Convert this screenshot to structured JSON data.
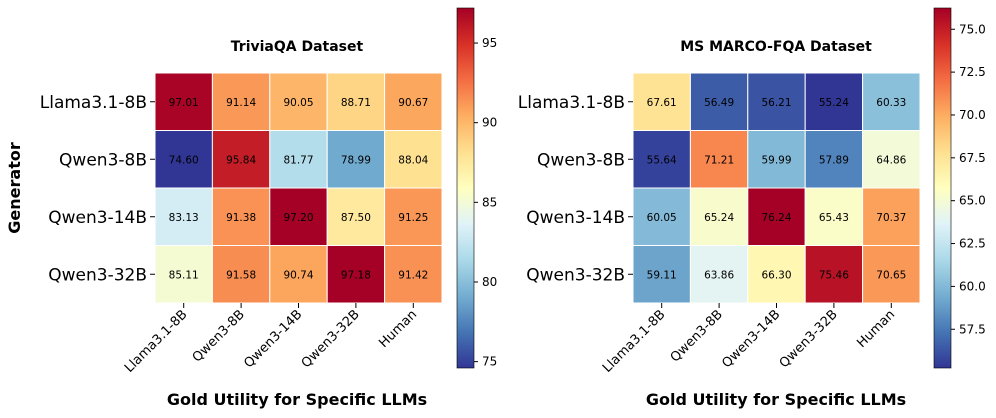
{
  "figure": {
    "ylabel": "Generator"
  },
  "chart_data": [
    {
      "type": "heatmap",
      "title": "TriviaQA Dataset",
      "xlabel": "Gold Utility for Specific LLMs",
      "ylabel": "Generator",
      "rows": [
        "Llama3.1-8B",
        "Qwen3-8B",
        "Qwen3-14B",
        "Qwen3-32B"
      ],
      "columns": [
        "Llama3.1-8B",
        "Qwen3-8B",
        "Qwen3-14B",
        "Qwen3-32B",
        "Human"
      ],
      "values": [
        [
          97.01,
          91.14,
          90.05,
          88.71,
          90.67
        ],
        [
          74.6,
          95.84,
          81.77,
          78.99,
          88.04
        ],
        [
          83.13,
          91.38,
          97.2,
          87.5,
          91.25
        ],
        [
          85.11,
          91.58,
          90.74,
          97.18,
          91.42
        ]
      ],
      "labels": [
        [
          "97.01",
          "91.14",
          "90.05",
          "88.71",
          "90.67"
        ],
        [
          "74.60",
          "95.84",
          "81.77",
          "78.99",
          "88.04"
        ],
        [
          "83.13",
          "91.38",
          "97.20",
          "87.50",
          "91.25"
        ],
        [
          "85.11",
          "91.58",
          "90.74",
          "97.18",
          "91.42"
        ]
      ],
      "colormap": "RdYlBu_r",
      "vmin": 74.6,
      "vmax": 97.2,
      "colorbar_ticks": [
        75,
        80,
        85,
        90,
        95
      ]
    },
    {
      "type": "heatmap",
      "title": "MS MARCO-FQA Dataset",
      "xlabel": "Gold Utility for Specific LLMs",
      "ylabel": "",
      "rows": [
        "Llama3.1-8B",
        "Qwen3-8B",
        "Qwen3-14B",
        "Qwen3-32B"
      ],
      "columns": [
        "Llama3.1-8B",
        "Qwen3-8B",
        "Qwen3-14B",
        "Qwen3-32B",
        "Human"
      ],
      "values": [
        [
          67.61,
          56.49,
          56.21,
          55.24,
          60.33
        ],
        [
          55.64,
          71.21,
          59.99,
          57.89,
          64.86
        ],
        [
          60.05,
          65.24,
          76.24,
          65.43,
          70.37
        ],
        [
          59.11,
          63.86,
          66.3,
          75.46,
          70.65
        ]
      ],
      "labels": [
        [
          "67.61",
          "56.49",
          "56.21",
          "55.24",
          "60.33"
        ],
        [
          "55.64",
          "71.21",
          "59.99",
          "57.89",
          "64.86"
        ],
        [
          "60.05",
          "65.24",
          "76.24",
          "65.43",
          "70.37"
        ],
        [
          "59.11",
          "63.86",
          "66.30",
          "75.46",
          "70.65"
        ]
      ],
      "colormap": "RdYlBu_r",
      "vmin": 55.24,
      "vmax": 76.24,
      "colorbar_ticks": [
        57.5,
        60.0,
        62.5,
        65.0,
        67.5,
        70.0,
        72.5,
        75.0
      ],
      "colorbar_tick_labels": [
        "57.5",
        "60.0",
        "62.5",
        "65.0",
        "67.5",
        "70.0",
        "72.5",
        "75.0"
      ]
    }
  ]
}
